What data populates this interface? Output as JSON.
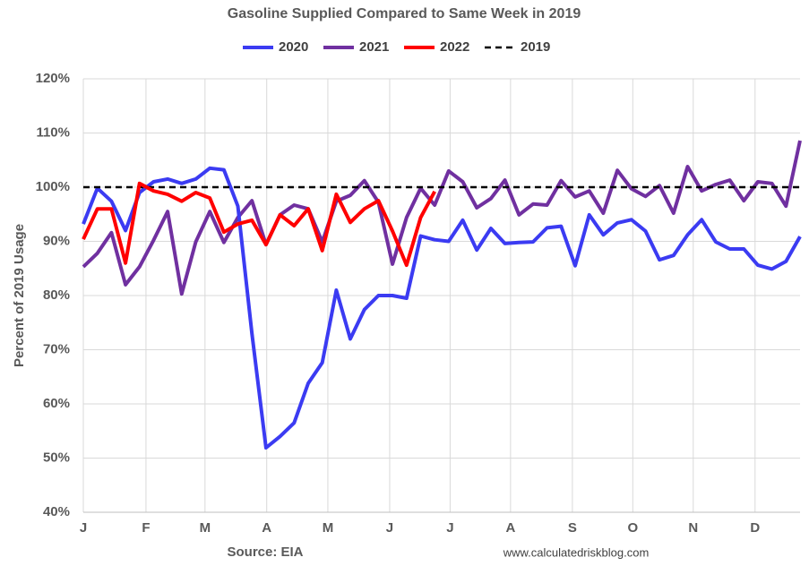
{
  "chart_data": {
    "type": "line",
    "title": "Gasoline Supplied Compared to Same Week in 2019",
    "y_label": "Percent of 2019 Usage",
    "source": "Source: EIA",
    "credit": "www.calculatedriskblog.com",
    "grid": true,
    "legend": "top",
    "x": [
      0,
      1,
      2,
      3,
      4,
      5,
      6,
      7,
      8,
      9,
      10,
      11,
      12,
      13,
      14,
      15,
      16,
      17,
      18,
      19,
      20,
      21,
      22,
      23,
      24,
      25,
      26,
      27,
      28,
      29,
      30,
      31,
      32,
      33,
      34,
      35,
      36,
      37,
      38,
      39,
      40,
      41,
      42,
      43,
      44,
      45,
      46,
      47,
      48,
      49,
      50,
      51
    ],
    "xlim": [
      0,
      51
    ],
    "xticks": [
      {
        "value": 0,
        "label": "J"
      },
      {
        "value": 4.46,
        "label": "F"
      },
      {
        "value": 8.66,
        "label": "M"
      },
      {
        "value": 13.05,
        "label": "A"
      },
      {
        "value": 17.4,
        "label": "M"
      },
      {
        "value": 21.8,
        "label": "J"
      },
      {
        "value": 26.1,
        "label": "J"
      },
      {
        "value": 30.4,
        "label": "A"
      },
      {
        "value": 34.8,
        "label": "S"
      },
      {
        "value": 39.1,
        "label": "O"
      },
      {
        "value": 43.4,
        "label": "N"
      },
      {
        "value": 47.8,
        "label": "D"
      }
    ],
    "ylim": [
      40,
      120
    ],
    "yticks": [
      {
        "value": 40,
        "label": "40%"
      },
      {
        "value": 50,
        "label": "50%"
      },
      {
        "value": 60,
        "label": "60%"
      },
      {
        "value": 70,
        "label": "70%"
      },
      {
        "value": 80,
        "label": "80%"
      },
      {
        "value": 90,
        "label": "90%"
      },
      {
        "value": 100,
        "label": "100%"
      },
      {
        "value": 110,
        "label": "110%"
      },
      {
        "value": 120,
        "label": "120%"
      }
    ],
    "series": [
      {
        "name": "2020",
        "color": "#3b3bf2",
        "dashed": false,
        "values": [
          93.2,
          99.8,
          97.4,
          92,
          99,
          101,
          101.5,
          100.7,
          101.5,
          103.5,
          103.2,
          96.5,
          73,
          51.9,
          54,
          56.5,
          63.8,
          67.6,
          81,
          72,
          77.4,
          80,
          80,
          79.5,
          91,
          90.3,
          90,
          93.9,
          88.4,
          92.4,
          89.6,
          89.8,
          89.9,
          92.5,
          92.8,
          85.5,
          94.9,
          91.2,
          93.4,
          94,
          91.9,
          86.6,
          87.4,
          91.2,
          94,
          89.9,
          88.6,
          88.6,
          85.6,
          84.9,
          86.3,
          90.9
        ]
      },
      {
        "name": "2021",
        "color": "#7030a0",
        "dashed": false,
        "values": [
          85.3,
          87.8,
          91.6,
          82,
          85.3,
          90.2,
          95.5,
          80.3,
          89.9,
          95.5,
          89.8,
          94.4,
          97.5,
          89.4,
          94.9,
          96.7,
          96,
          89.9,
          97.4,
          98.5,
          101.2,
          97.2,
          85.8,
          94.4,
          99.8,
          96.7,
          103,
          101,
          96.2,
          97.9,
          101.3,
          94.9,
          96.9,
          96.7,
          101.2,
          98.2,
          99.3,
          95.2,
          103.1,
          99.7,
          98.3,
          100.3,
          95.2,
          103.8,
          99.3,
          100.5,
          101.3,
          97.5,
          101,
          100.7,
          96.5,
          108.6
        ]
      },
      {
        "name": "2022",
        "color": "#ff0000",
        "dashed": false,
        "values": [
          90.4,
          96,
          96,
          86,
          100.7,
          99.3,
          98.7,
          97.4,
          99,
          98,
          91.7,
          93.2,
          93.9,
          89.4,
          94.9,
          92.9,
          96,
          88.3,
          98.7,
          93.5,
          96,
          97.5,
          91.9,
          85.6,
          94.4,
          99.2,
          null,
          null,
          null,
          null,
          null,
          null,
          null,
          null,
          null,
          null,
          null,
          null,
          null,
          null,
          null,
          null,
          null,
          null,
          null,
          null,
          null,
          null,
          null,
          null,
          null,
          null
        ]
      },
      {
        "name": "2019",
        "color": "#000000",
        "dashed": true,
        "values": [
          100,
          100,
          100,
          100,
          100,
          100,
          100,
          100,
          100,
          100,
          100,
          100,
          100,
          100,
          100,
          100,
          100,
          100,
          100,
          100,
          100,
          100,
          100,
          100,
          100,
          100,
          100,
          100,
          100,
          100,
          100,
          100,
          100,
          100,
          100,
          100,
          100,
          100,
          100,
          100,
          100,
          100,
          100,
          100,
          100,
          100,
          100,
          100,
          100,
          100,
          100,
          100
        ]
      }
    ]
  }
}
